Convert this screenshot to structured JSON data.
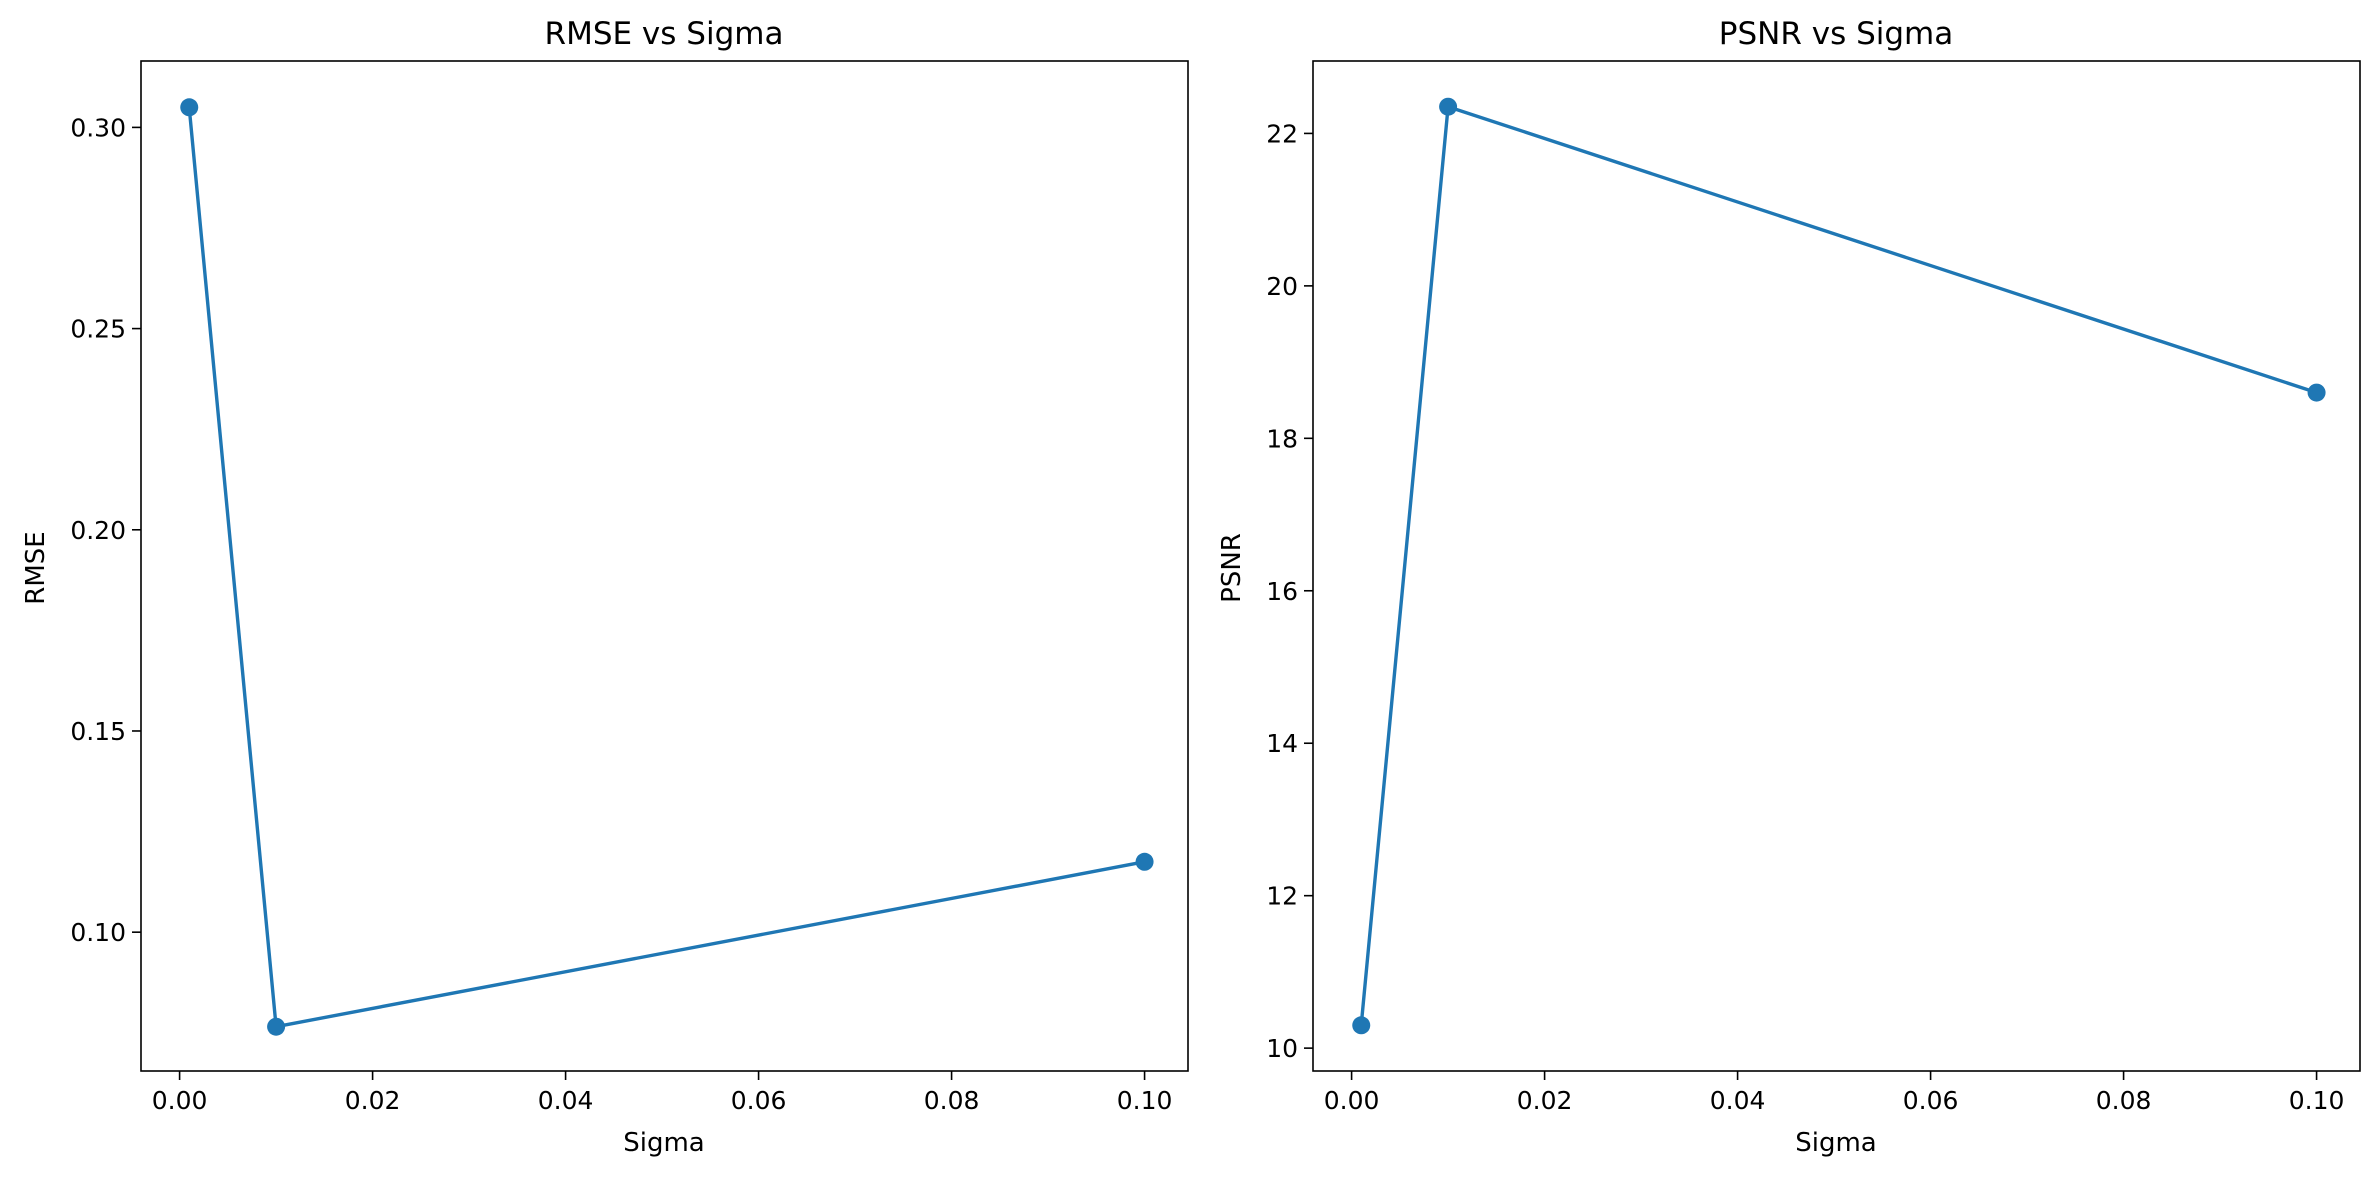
{
  "chart_data": [
    {
      "type": "line",
      "title": "RMSE vs Sigma",
      "xlabel": "Sigma",
      "ylabel": "RMSE",
      "xlim": [
        -0.004,
        0.1045
      ],
      "ylim": [
        0.0655,
        0.3165
      ],
      "xticks": [
        0.0,
        0.02,
        0.04,
        0.06,
        0.08,
        0.1
      ],
      "xtick_labels": [
        "0.00",
        "0.02",
        "0.04",
        "0.06",
        "0.08",
        "0.10"
      ],
      "yticks": [
        0.1,
        0.15,
        0.2,
        0.25,
        0.3
      ],
      "ytick_labels": [
        "0.10",
        "0.15",
        "0.20",
        "0.25",
        "0.30"
      ],
      "marker": "circle",
      "grid": false,
      "series": [
        {
          "x": [
            0.001,
            0.01,
            0.1
          ],
          "y": [
            0.305,
            0.0765,
            0.1175
          ],
          "color": "#1f77b4"
        }
      ]
    },
    {
      "type": "line",
      "title": "PSNR vs Sigma",
      "xlabel": "Sigma",
      "ylabel": "PSNR",
      "xlim": [
        -0.004,
        0.1045
      ],
      "ylim": [
        9.7,
        22.95
      ],
      "xticks": [
        0.0,
        0.02,
        0.04,
        0.06,
        0.08,
        0.1
      ],
      "xtick_labels": [
        "0.00",
        "0.02",
        "0.04",
        "0.06",
        "0.08",
        "0.10"
      ],
      "yticks": [
        10,
        12,
        14,
        16,
        18,
        20,
        22
      ],
      "ytick_labels": [
        "10",
        "12",
        "14",
        "16",
        "18",
        "20",
        "22"
      ],
      "marker": "circle",
      "grid": false,
      "series": [
        {
          "x": [
            0.001,
            0.01,
            0.1
          ],
          "y": [
            10.3,
            22.35,
            18.6
          ],
          "color": "#1f77b4"
        }
      ]
    }
  ]
}
